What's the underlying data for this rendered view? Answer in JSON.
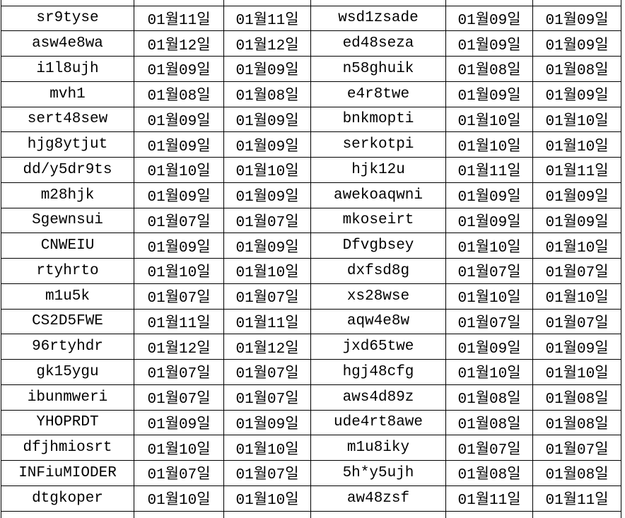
{
  "colors": {
    "border": "#000000",
    "text": "#000000",
    "background": "#ffffff"
  },
  "table": {
    "rows": [
      [
        "sr9tyse",
        "01월11일",
        "01월11일",
        "wsd1zsade",
        "01월09일",
        "01월09일"
      ],
      [
        "asw4e8wa",
        "01월12일",
        "01월12일",
        "ed48seza",
        "01월09일",
        "01월09일"
      ],
      [
        "i1l8ujh",
        "01월09일",
        "01월09일",
        "n58ghuik",
        "01월08일",
        "01월08일"
      ],
      [
        "mvh1",
        "01월08일",
        "01월08일",
        "e4r8twe",
        "01월09일",
        "01월09일"
      ],
      [
        "sert48sew",
        "01월09일",
        "01월09일",
        "bnkmopti",
        "01월10일",
        "01월10일"
      ],
      [
        "hjg8ytjut",
        "01월09일",
        "01월09일",
        "serkotpi",
        "01월10일",
        "01월10일"
      ],
      [
        "dd/y5dr9ts",
        "01월10일",
        "01월10일",
        "hjk12u",
        "01월11일",
        "01월11일"
      ],
      [
        "m28hjk",
        "01월09일",
        "01월09일",
        "awekoaqwni",
        "01월09일",
        "01월09일"
      ],
      [
        "Sgewnsui",
        "01월07일",
        "01월07일",
        "mkoseirt",
        "01월09일",
        "01월09일"
      ],
      [
        "CNWEIU",
        "01월09일",
        "01월09일",
        "Dfvgbsey",
        "01월10일",
        "01월10일"
      ],
      [
        "rtyhrto",
        "01월10일",
        "01월10일",
        "dxfsd8g",
        "01월07일",
        "01월07일"
      ],
      [
        "m1u5k",
        "01월07일",
        "01월07일",
        "xs28wse",
        "01월10일",
        "01월10일"
      ],
      [
        "CS2D5FWE",
        "01월11일",
        "01월11일",
        "aqw4e8w",
        "01월07일",
        "01월07일"
      ],
      [
        "96rtyhdr",
        "01월12일",
        "01월12일",
        "jxd65twe",
        "01월09일",
        "01월09일"
      ],
      [
        "gk15ygu",
        "01월07일",
        "01월07일",
        "hgj48cfg",
        "01월10일",
        "01월10일"
      ],
      [
        "ibunmweri",
        "01월07일",
        "01월07일",
        "aws4d89z",
        "01월08일",
        "01월08일"
      ],
      [
        "YHOPRDT",
        "01월09일",
        "01월09일",
        "ude4rt8awe",
        "01월08일",
        "01월08일"
      ],
      [
        "dfjhmiosrt",
        "01월10일",
        "01월10일",
        "m1u8iky",
        "01월07일",
        "01월07일"
      ],
      [
        "INFiuMIODER",
        "01월07일",
        "01월07일",
        "5h*y5ujh",
        "01월08일",
        "01월08일"
      ],
      [
        "dtgkoper",
        "01월10일",
        "01월10일",
        "aw48zsf",
        "01월11일",
        "01월11일"
      ]
    ]
  }
}
